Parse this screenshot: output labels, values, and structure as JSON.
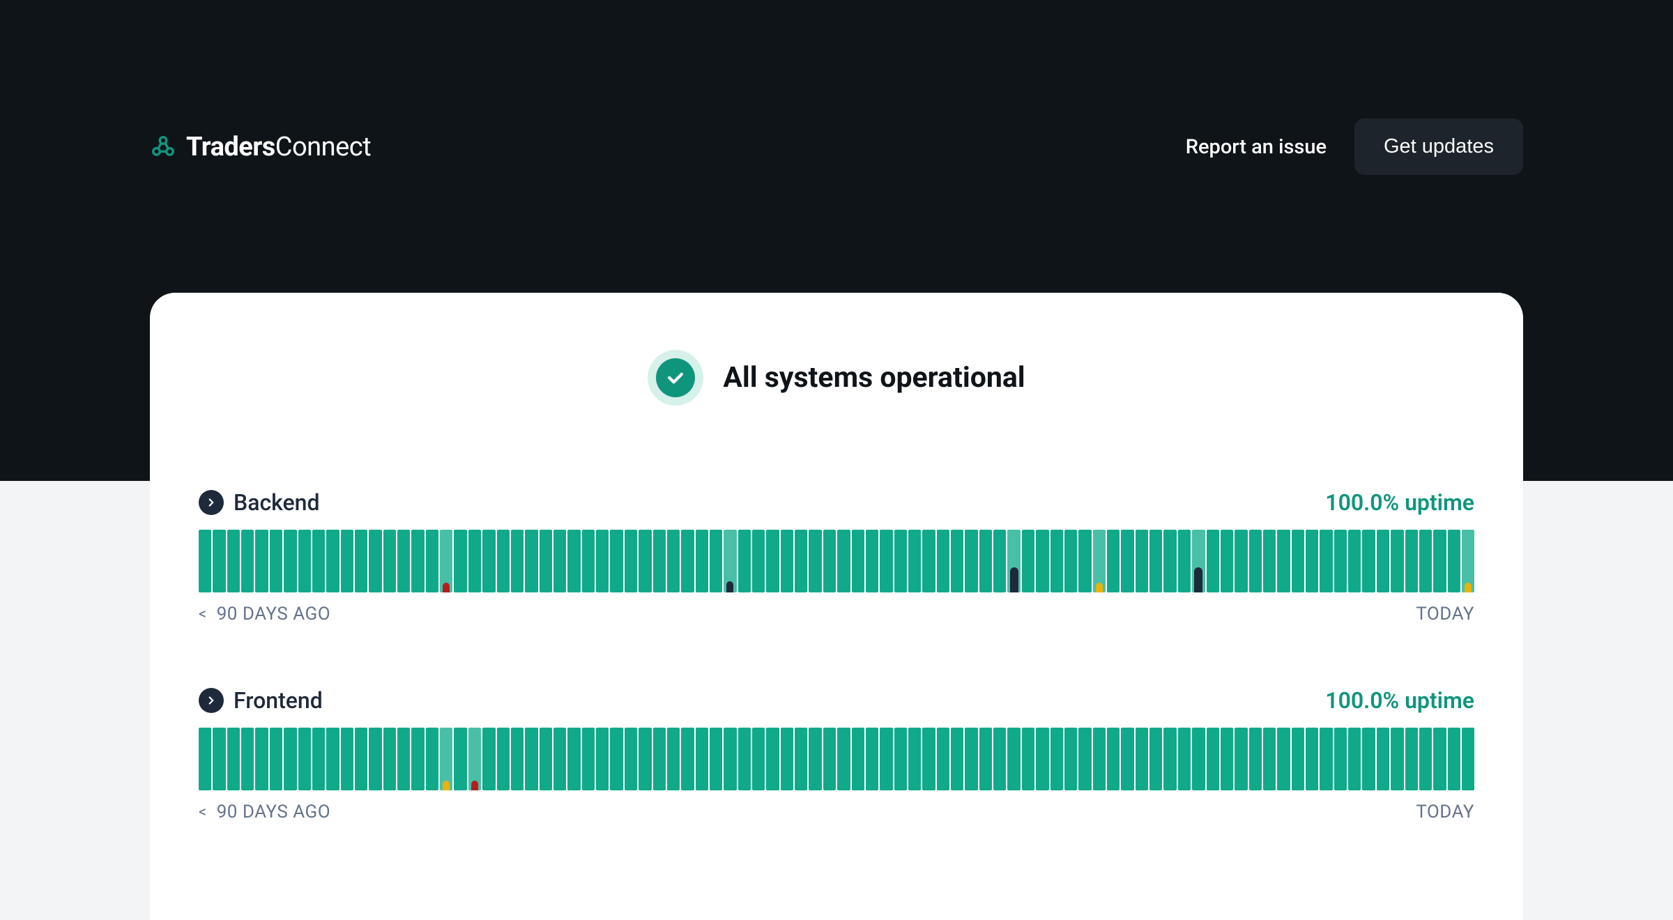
{
  "brand": {
    "name_bold": "Traders",
    "name_light": "Connect",
    "icon": "cluster-icon",
    "icon_color": "#10957d"
  },
  "nav": {
    "report_label": "Report an issue",
    "updates_label": "Get updates"
  },
  "overall": {
    "status_text": "All systems operational",
    "badge_color": "#10957d",
    "badge_halo": "#d6f1ea"
  },
  "labels": {
    "left": "90 DAYS AGO",
    "right": "TODAY"
  },
  "services": [
    {
      "name": "Backend",
      "uptime": "100.0% uptime",
      "days": 90,
      "incidents": [
        {
          "day": 17,
          "type": "lighter"
        },
        {
          "day": 17,
          "type": "red"
        },
        {
          "day": 37,
          "type": "lighter"
        },
        {
          "day": 37,
          "type": "dark-small"
        },
        {
          "day": 57,
          "type": "lighter"
        },
        {
          "day": 57,
          "type": "dark"
        },
        {
          "day": 63,
          "type": "lighter"
        },
        {
          "day": 63,
          "type": "yellow"
        },
        {
          "day": 70,
          "type": "lighter"
        },
        {
          "day": 70,
          "type": "dark"
        },
        {
          "day": 89,
          "type": "lighter"
        },
        {
          "day": 89,
          "type": "yellow"
        }
      ]
    },
    {
      "name": "Frontend",
      "uptime": "100.0% uptime",
      "days": 90,
      "incidents": [
        {
          "day": 17,
          "type": "lighter"
        },
        {
          "day": 17,
          "type": "yellow"
        },
        {
          "day": 19,
          "type": "lighter"
        },
        {
          "day": 19,
          "type": "red"
        }
      ]
    }
  ],
  "colors": {
    "page_bg": "#f3f4f6",
    "header_bg": "#0f1419",
    "card_bg": "#ffffff",
    "tick_ok": "#10a98a",
    "tick_lighter": "#4abfa8",
    "accent": "#10957d",
    "yellow": "#eab308",
    "red": "#b91c1c",
    "dark": "#1e293b",
    "muted": "#64748b"
  }
}
